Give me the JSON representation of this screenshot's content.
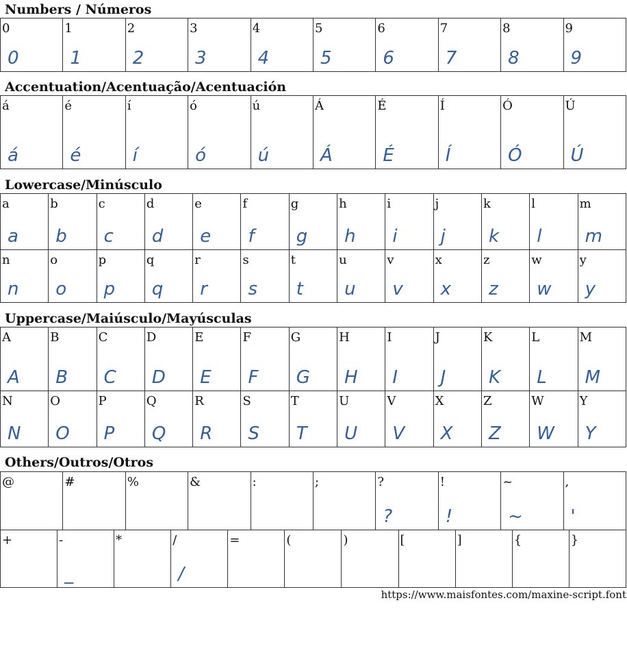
{
  "sections": [
    {
      "title": "Numbers / Números",
      "rows": [
        [
          "0",
          "1",
          "2",
          "3",
          "4",
          "5",
          "6",
          "7",
          "8",
          "9"
        ]
      ],
      "glyphs": [
        [
          "0",
          "1",
          "2",
          "3",
          "4",
          "5",
          "6",
          "7",
          "8",
          "9"
        ]
      ]
    },
    {
      "title": "Accentuation/Acentuação/Acentuación",
      "rows": [
        [
          "á",
          "é",
          "í",
          "ó",
          "ú",
          "Á",
          "É",
          "Í",
          "Ó",
          "Ú"
        ]
      ],
      "glyphs": [
        [
          "á",
          "é",
          "í",
          "ó",
          "ú",
          "Á",
          "É",
          "Í",
          "Ó",
          "Ú"
        ]
      ]
    },
    {
      "title": "Lowercase/Minúsculo",
      "rows": [
        [
          "a",
          "b",
          "c",
          "d",
          "e",
          "f",
          "g",
          "h",
          "i",
          "j",
          "k",
          "l",
          "m"
        ],
        [
          "n",
          "o",
          "p",
          "q",
          "r",
          "s",
          "t",
          "u",
          "v",
          "x",
          "z",
          "w",
          "y"
        ]
      ],
      "glyphs": [
        [
          "a",
          "b",
          "c",
          "d",
          "e",
          "f",
          "g",
          "h",
          "i",
          "j",
          "k",
          "l",
          "m"
        ],
        [
          "n",
          "o",
          "p",
          "q",
          "r",
          "s",
          "t",
          "u",
          "v",
          "x",
          "z",
          "w",
          "y"
        ]
      ]
    },
    {
      "title": "Uppercase/Maiúsculo/Mayúsculas",
      "rows": [
        [
          "A",
          "B",
          "C",
          "D",
          "E",
          "F",
          "G",
          "H",
          "I",
          "J",
          "K",
          "L",
          "M"
        ],
        [
          "N",
          "O",
          "P",
          "Q",
          "R",
          "S",
          "T",
          "U",
          "V",
          "X",
          "Z",
          "W",
          "Y"
        ]
      ],
      "glyphs": [
        [
          "A",
          "B",
          "C",
          "D",
          "E",
          "F",
          "G",
          "H",
          "I",
          "J",
          "K",
          "L",
          "M"
        ],
        [
          "N",
          "O",
          "P",
          "Q",
          "R",
          "S",
          "T",
          "U",
          "V",
          "X",
          "Z",
          "W",
          "Y"
        ]
      ]
    },
    {
      "title": "Others/Outros/Otros",
      "rows": [
        [
          "@",
          "#",
          "%",
          "&",
          ":",
          ";",
          "?",
          "!",
          "~",
          ","
        ],
        [
          "+",
          "-",
          "*",
          "/",
          "=",
          "(",
          ")",
          "[",
          "]",
          "{",
          "}"
        ]
      ],
      "glyphs": [
        [
          "",
          "",
          "",
          "",
          "",
          "",
          "?",
          "!",
          "~",
          "'"
        ],
        [
          "",
          "_",
          "",
          "/",
          "",
          "",
          "",
          "",
          "",
          "",
          ""
        ]
      ]
    }
  ],
  "footer_url": "https://www.maisfontes.com/maxine-script.font",
  "colors": {
    "glyph": "#2f5f9f",
    "border": "#333333"
  }
}
